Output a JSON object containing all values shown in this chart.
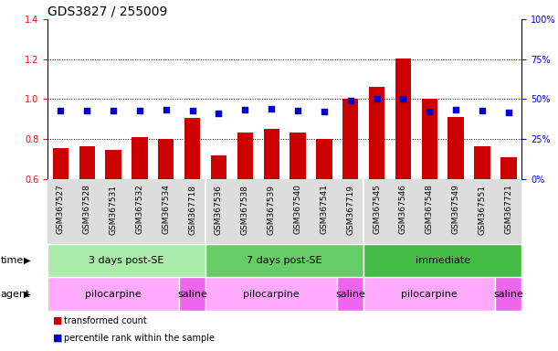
{
  "title": "GDS3827 / 255009",
  "samples": [
    "GSM367527",
    "GSM367528",
    "GSM367531",
    "GSM367532",
    "GSM367534",
    "GSM367718",
    "GSM367536",
    "GSM367538",
    "GSM367539",
    "GSM367540",
    "GSM367541",
    "GSM367719",
    "GSM367545",
    "GSM367546",
    "GSM367548",
    "GSM367549",
    "GSM367551",
    "GSM367721"
  ],
  "bar_values": [
    0.755,
    0.762,
    0.748,
    0.808,
    0.8,
    0.906,
    0.718,
    0.832,
    0.852,
    0.832,
    0.8,
    1.002,
    1.063,
    1.202,
    1.0,
    0.91,
    0.765,
    0.71
  ],
  "dot_values": [
    0.943,
    0.943,
    0.943,
    0.943,
    0.948,
    0.943,
    0.928,
    0.945,
    0.95,
    0.943,
    0.938,
    0.992,
    1.0,
    1.003,
    0.938,
    0.946,
    0.943,
    0.932
  ],
  "bar_color": "#cc0000",
  "dot_color": "#0000cc",
  "ylim": [
    0.6,
    1.4
  ],
  "yticks": [
    0.6,
    0.8,
    1.0,
    1.2,
    1.4
  ],
  "y2ticks_vals": [
    0.6,
    0.8,
    1.0,
    1.2,
    1.4
  ],
  "y2labels": [
    "0%",
    "25%",
    "50%",
    "75%",
    "100%"
  ],
  "grid_values": [
    0.8,
    1.0,
    1.2
  ],
  "time_groups": [
    {
      "label": "3 days post-SE",
      "start": 0,
      "end": 6,
      "color": "#aaeaaa"
    },
    {
      "label": "7 days post-SE",
      "start": 6,
      "end": 12,
      "color": "#66cc66"
    },
    {
      "label": "immediate",
      "start": 12,
      "end": 18,
      "color": "#44bb44"
    }
  ],
  "agent_groups": [
    {
      "label": "pilocarpine",
      "start": 0,
      "end": 5,
      "color": "#ffaaff"
    },
    {
      "label": "saline",
      "start": 5,
      "end": 6,
      "color": "#ee66ee"
    },
    {
      "label": "pilocarpine",
      "start": 6,
      "end": 11,
      "color": "#ffaaff"
    },
    {
      "label": "saline",
      "start": 11,
      "end": 12,
      "color": "#ee66ee"
    },
    {
      "label": "pilocarpine",
      "start": 12,
      "end": 17,
      "color": "#ffaaff"
    },
    {
      "label": "saline",
      "start": 17,
      "end": 18,
      "color": "#ee66ee"
    }
  ],
  "legend_bar_label": "transformed count",
  "legend_dot_label": "percentile rank within the sample",
  "bar_width": 0.6,
  "background_color": "#ffffff",
  "plot_bg_color": "#ffffff",
  "title_fontsize": 10,
  "tick_fontsize": 7,
  "label_fontsize": 8,
  "xtick_bg_color": "#dddddd",
  "group_div_color": "#000000"
}
